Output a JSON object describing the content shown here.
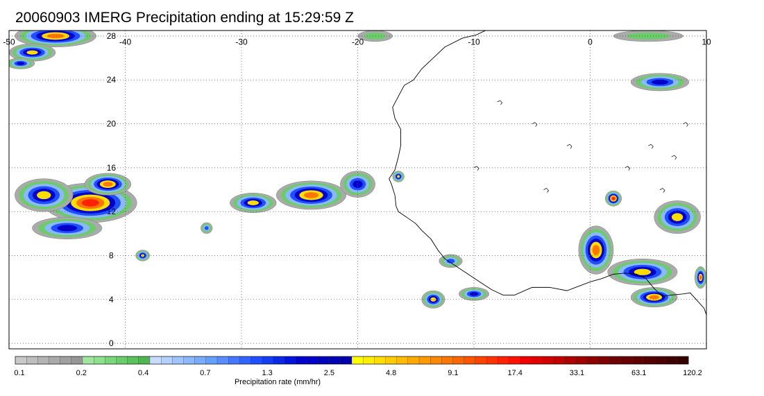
{
  "title": "20060903 IMERG Precipitation ending at 15:29:59 Z",
  "map": {
    "lon_range": [
      -50,
      10
    ],
    "lat_range": [
      -0.5,
      28.5
    ],
    "lon_ticks": [
      -50,
      -40,
      -30,
      -20,
      -10,
      0,
      10
    ],
    "lat_ticks": [
      0,
      4,
      8,
      12,
      16,
      20,
      24,
      28
    ],
    "lon_tick_labels": [
      "-50",
      "-40",
      "-30",
      "-20",
      "-10",
      "0",
      "10"
    ],
    "lat_tick_labels": [
      "0",
      "4",
      "8",
      "12",
      "16",
      "20",
      "24",
      "28"
    ],
    "grid": "dotted",
    "coastline_color": "#000000",
    "rain_areas": [
      {
        "lon": -46,
        "lat": 28.0,
        "rx": 3.5,
        "ry": 1.0,
        "peak": 12
      },
      {
        "lon": -48,
        "lat": 26.5,
        "rx": 2.0,
        "ry": 0.8,
        "peak": 6
      },
      {
        "lon": -49,
        "lat": 25.5,
        "rx": 1.2,
        "ry": 0.5,
        "peak": 2.5
      },
      {
        "lon": -43,
        "lat": 12.8,
        "rx": 4.0,
        "ry": 1.8,
        "peak": 25
      },
      {
        "lon": -47,
        "lat": 13.5,
        "rx": 2.5,
        "ry": 1.5,
        "peak": 6
      },
      {
        "lon": -41.5,
        "lat": 14.5,
        "rx": 2.0,
        "ry": 1.0,
        "peak": 10
      },
      {
        "lon": -45,
        "lat": 10.5,
        "rx": 3.0,
        "ry": 1.0,
        "peak": 4
      },
      {
        "lon": -38.5,
        "lat": 8.0,
        "rx": 0.6,
        "ry": 0.5,
        "peak": 6
      },
      {
        "lon": -29,
        "lat": 12.8,
        "rx": 2.0,
        "ry": 0.9,
        "peak": 8
      },
      {
        "lon": -24,
        "lat": 13.5,
        "rx": 3.0,
        "ry": 1.3,
        "peak": 9
      },
      {
        "lon": -20,
        "lat": 14.5,
        "rx": 1.5,
        "ry": 1.2,
        "peak": 3
      },
      {
        "lon": -33,
        "lat": 10.5,
        "rx": 0.5,
        "ry": 0.5,
        "peak": 2
      },
      {
        "lon": -16.5,
        "lat": 15.2,
        "rx": 0.5,
        "ry": 0.5,
        "peak": 5
      },
      {
        "lon": 2,
        "lat": 13.2,
        "rx": 0.7,
        "ry": 0.7,
        "peak": 18
      },
      {
        "lon": 7.5,
        "lat": 11.5,
        "rx": 2.0,
        "ry": 1.5,
        "peak": 8
      },
      {
        "lon": 0.5,
        "lat": 8.5,
        "rx": 1.5,
        "ry": 2.2,
        "peak": 15
      },
      {
        "lon": 4.5,
        "lat": 6.5,
        "rx": 3.0,
        "ry": 1.2,
        "peak": 7
      },
      {
        "lon": 5.5,
        "lat": 4.2,
        "rx": 2.0,
        "ry": 0.9,
        "peak": 10
      },
      {
        "lon": 9.5,
        "lat": 6.0,
        "rx": 0.5,
        "ry": 1.0,
        "peak": 9
      },
      {
        "lon": 6,
        "lat": 23.8,
        "rx": 2.5,
        "ry": 0.8,
        "peak": 4
      },
      {
        "lon": -13.5,
        "lat": 4.0,
        "rx": 1.0,
        "ry": 0.8,
        "peak": 7
      },
      {
        "lon": -10,
        "lat": 4.5,
        "rx": 1.3,
        "ry": 0.6,
        "peak": 3
      },
      {
        "lon": -12,
        "lat": 7.5,
        "rx": 1.0,
        "ry": 0.6,
        "peak": 2
      },
      {
        "lon": -18.5,
        "lat": 28.0,
        "rx": 1.5,
        "ry": 0.5,
        "peak": 0.5
      },
      {
        "lon": 5,
        "lat": 28.0,
        "rx": 3.0,
        "ry": 0.5,
        "peak": 0.5
      }
    ]
  },
  "colorbar": {
    "label": "Precipitation rate (mm/hr)",
    "tick_labels": [
      "0.1",
      "0.2",
      "0.4",
      "0.7",
      "1.3",
      "2.5",
      "4.8",
      "9.1",
      "17.4",
      "33.1",
      "63.1",
      "120.2"
    ],
    "colors": [
      "#c8c8c8",
      "#bebebe",
      "#b4b4b4",
      "#aaaaaa",
      "#a0a0a0",
      "#969696",
      "#a0e6a0",
      "#8ee08e",
      "#7cd77c",
      "#6ccc6c",
      "#5cc05c",
      "#50b450",
      "#c8dcff",
      "#b4d0ff",
      "#a0c4ff",
      "#8cb8ff",
      "#78acff",
      "#64a0ff",
      "#5a8cff",
      "#4678ff",
      "#3264ff",
      "#1e50ff",
      "#143cf0",
      "#0a28e6",
      "#0014dc",
      "#0000d2",
      "#0000c8",
      "#0000be",
      "#0000b4",
      "#0000aa",
      "#ffff00",
      "#ffee00",
      "#ffdd00",
      "#ffcc00",
      "#ffbb00",
      "#ffaa00",
      "#ff9900",
      "#ff8800",
      "#ff7700",
      "#ff6600",
      "#ff5500",
      "#ff4400",
      "#ff3300",
      "#ff2200",
      "#ff1100",
      "#f00000",
      "#e00000",
      "#d00000",
      "#c00000",
      "#b00000",
      "#a00000",
      "#900000",
      "#800000",
      "#700000",
      "#660000",
      "#5c0000",
      "#520000",
      "#480000",
      "#3e0000",
      "#340000"
    ]
  }
}
